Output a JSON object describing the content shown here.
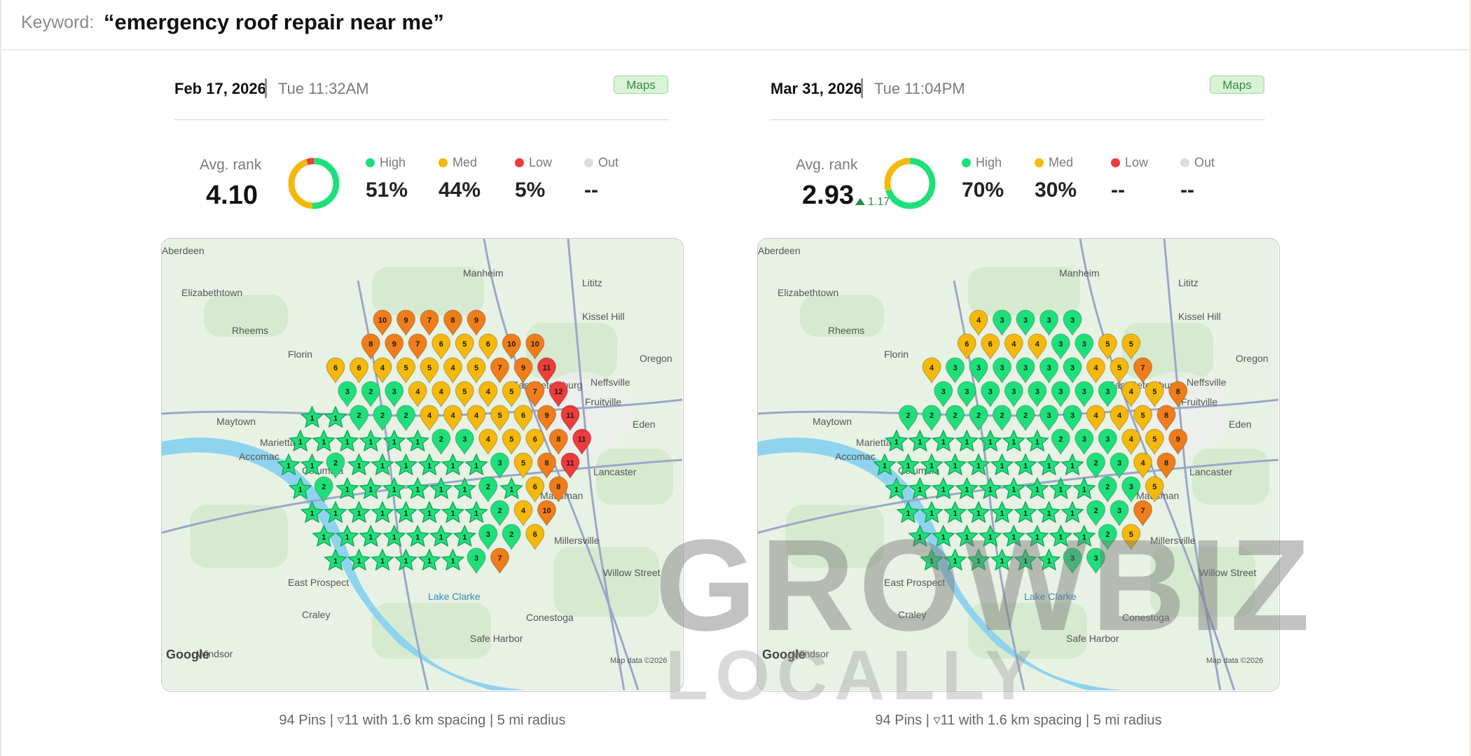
{
  "keyword": {
    "label": "Keyword:",
    "value": "“emergency roof repair near me”"
  },
  "colors": {
    "high": "#1ee07a",
    "high_dark": "#18b45c",
    "med": "#f5b90c",
    "low": "#ee3b3b",
    "out": "#dcdcdc",
    "orange": "#f07d1a",
    "map_bg": "#e8f2e4",
    "water": "#8ed4ee"
  },
  "icons": {
    "pin_star": "star-pin-icon",
    "pin_drop": "teardrop-pin-icon",
    "trend": "triangle-up-icon"
  },
  "panels": [
    {
      "date": "Feb 17, 2026",
      "time": "Tue 11:32AM",
      "badge": "Maps",
      "avg_label": "Avg. rank",
      "avg_value": "4.10",
      "avg_delta": "",
      "donut": {
        "high": 0.51,
        "med": 0.44,
        "low": 0.05,
        "out": 0
      },
      "stats": [
        {
          "label": "High",
          "value": "51%",
          "color": "#1ee07a"
        },
        {
          "label": "Med",
          "value": "44%",
          "color": "#f5b90c"
        },
        {
          "label": "Low",
          "value": "5%",
          "color": "#ee3b3b"
        },
        {
          "label": "Out",
          "value": "--",
          "color": "#dcdcdc"
        }
      ],
      "map_labels": [
        "Aberdeen",
        "Elizabethtown",
        "Manheim",
        "Lititz",
        "Kissel Hill",
        "Rheems",
        "Florin",
        "Oregon",
        "Neffsville",
        "East Petersburg",
        "Fruitville",
        "Maytown",
        "Eden",
        "Marietta",
        "Lancaster",
        "Accomac",
        "Columbia",
        "Mausman",
        "Millersville",
        "Willow Street",
        "East Prospect",
        "Lake Clarke",
        "Craley",
        "Conestoga",
        "Safe Harbor",
        "Windsor",
        "Map data ©2026",
        "Google"
      ],
      "grid_ranks": [
        [
          "out",
          "out",
          "out",
          "out",
          "10",
          "9",
          "7",
          "8",
          "9",
          "out",
          "out",
          "out",
          "out"
        ],
        [
          "out",
          "out",
          "out",
          "8",
          "9",
          "7",
          "6",
          "5",
          "6",
          "10",
          "10",
          "out",
          "out"
        ],
        [
          "out",
          "out",
          "6",
          "6",
          "4",
          "5",
          "5",
          "4",
          "5",
          "7",
          "9",
          "11",
          "out"
        ],
        [
          "out",
          "out",
          "3",
          "2",
          "3",
          "4",
          "4",
          "5",
          "4",
          "5",
          "7",
          "12",
          "out"
        ],
        [
          "out",
          "1",
          "1",
          "2",
          "2",
          "2",
          "4",
          "4",
          "4",
          "5",
          "6",
          "9",
          "11"
        ],
        [
          "1",
          "1",
          "1",
          "1",
          "1",
          "1",
          "2",
          "3",
          "4",
          "5",
          "6",
          "8",
          "11"
        ],
        [
          "1",
          "1",
          "2",
          "1",
          "1",
          "1",
          "1",
          "1",
          "1",
          "3",
          "5",
          "8",
          "11"
        ],
        [
          "1",
          "2",
          "1",
          "1",
          "1",
          "1",
          "1",
          "1",
          "2",
          "1",
          "6",
          "8",
          "out"
        ],
        [
          "out",
          "1",
          "1",
          "1",
          "1",
          "1",
          "1",
          "1",
          "1",
          "2",
          "4",
          "10",
          "out"
        ],
        [
          "out",
          "1",
          "1",
          "1",
          "1",
          "1",
          "1",
          "1",
          "3",
          "2",
          "6",
          "out",
          "out"
        ],
        [
          "out",
          "out",
          "1",
          "1",
          "1",
          "1",
          "1",
          "1",
          "3",
          "7",
          "out",
          "out",
          "out"
        ]
      ],
      "footer": "94 Pins | ▿11 with 1.6 km spacing | 5 mi radius"
    },
    {
      "date": "Mar 31, 2026",
      "time": "Tue 11:04PM",
      "badge": "Maps",
      "avg_label": "Avg. rank",
      "avg_value": "2.93",
      "avg_delta": "1.17",
      "donut": {
        "high": 0.7,
        "med": 0.3,
        "low": 0,
        "out": 0
      },
      "stats": [
        {
          "label": "High",
          "value": "70%",
          "color": "#1ee07a"
        },
        {
          "label": "Med",
          "value": "30%",
          "color": "#f5b90c"
        },
        {
          "label": "Low",
          "value": "--",
          "color": "#ee3b3b"
        },
        {
          "label": "Out",
          "value": "--",
          "color": "#dcdcdc"
        }
      ],
      "map_labels": [
        "Aberdeen",
        "Elizabethtown",
        "Manheim",
        "Lititz",
        "Kissel Hill",
        "Rheems",
        "Florin",
        "Oregon",
        "Neffsville",
        "East Petersburg",
        "Fruitville",
        "Maytown",
        "Eden",
        "Marietta",
        "Lancaster",
        "Accomac",
        "Columbia",
        "Mausman",
        "Millersville",
        "Willow Street",
        "East Prospect",
        "Lake Clarke",
        "Craley",
        "Conestoga",
        "Safe Harbor",
        "Windsor",
        "Map data ©2026",
        "Google"
      ],
      "grid_ranks": [
        [
          "out",
          "out",
          "out",
          "out",
          "4",
          "3",
          "3",
          "3",
          "3",
          "out",
          "out",
          "out",
          "out"
        ],
        [
          "out",
          "out",
          "out",
          "6",
          "6",
          "4",
          "4",
          "3",
          "3",
          "5",
          "5",
          "out",
          "out"
        ],
        [
          "out",
          "out",
          "4",
          "3",
          "3",
          "3",
          "3",
          "3",
          "3",
          "4",
          "5",
          "7",
          "out"
        ],
        [
          "out",
          "out",
          "3",
          "3",
          "3",
          "3",
          "3",
          "3",
          "3",
          "3",
          "4",
          "5",
          "8"
        ],
        [
          "out",
          "2",
          "2",
          "2",
          "2",
          "2",
          "2",
          "3",
          "3",
          "4",
          "4",
          "5",
          "8"
        ],
        [
          "1",
          "1",
          "1",
          "1",
          "1",
          "1",
          "1",
          "2",
          "3",
          "3",
          "4",
          "5",
          "9"
        ],
        [
          "1",
          "1",
          "1",
          "1",
          "1",
          "1",
          "1",
          "1",
          "1",
          "2",
          "3",
          "4",
          "8"
        ],
        [
          "1",
          "1",
          "1",
          "1",
          "1",
          "1",
          "1",
          "1",
          "1",
          "2",
          "3",
          "5",
          "out"
        ],
        [
          "out",
          "1",
          "1",
          "1",
          "1",
          "1",
          "1",
          "1",
          "1",
          "2",
          "3",
          "7",
          "out"
        ],
        [
          "out",
          "1",
          "1",
          "1",
          "1",
          "1",
          "1",
          "1",
          "1",
          "2",
          "5",
          "out",
          "out"
        ],
        [
          "out",
          "out",
          "1",
          "1",
          "1",
          "1",
          "1",
          "1",
          "3",
          "3",
          "out",
          "out",
          "out"
        ]
      ],
      "footer": "94 Pins | ▿11 with 1.6 km spacing | 5 mi radius"
    }
  ],
  "watermark": {
    "text": "GROWBIZ",
    "sub": "LOCALLY"
  }
}
